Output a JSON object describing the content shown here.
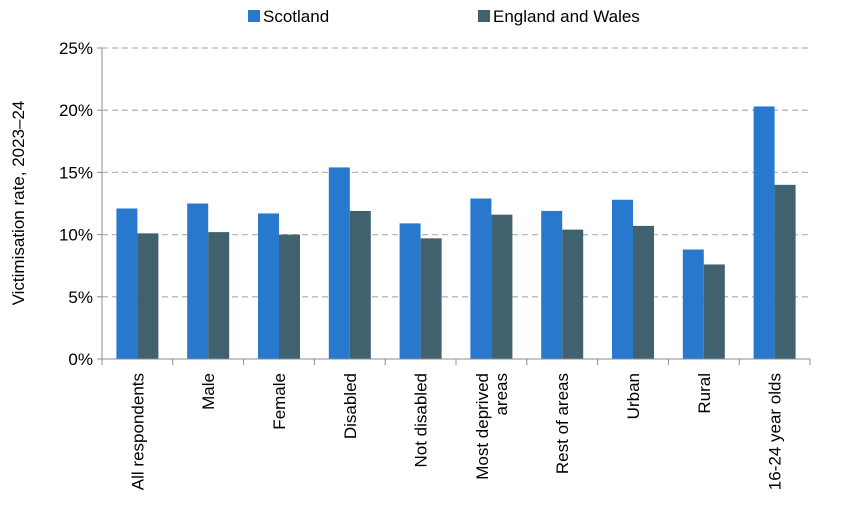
{
  "chart_data": {
    "type": "bar",
    "ylabel": "Victimisation rate, 2023–24",
    "yticks": [
      "0%",
      "5%",
      "10%",
      "15%",
      "20%",
      "25%"
    ],
    "ylim": [
      0,
      25
    ],
    "y_unit": "%",
    "grid": true,
    "legend_position": "top",
    "categories": [
      [
        "All respondents"
      ],
      [
        "Male"
      ],
      [
        "Female"
      ],
      [
        "Disabled"
      ],
      [
        "Not disabled"
      ],
      [
        "Most deprived",
        "areas"
      ],
      [
        "Rest of areas"
      ],
      [
        "Urban"
      ],
      [
        "Rural"
      ],
      [
        "16-24 year olds"
      ]
    ],
    "series": [
      {
        "name": "Scotland",
        "color": "#2878CE",
        "values": [
          12.1,
          12.5,
          11.7,
          15.4,
          10.9,
          12.9,
          11.9,
          12.8,
          8.8,
          20.3
        ]
      },
      {
        "name": "England and Wales",
        "color": "#3F626E",
        "values": [
          10.1,
          10.2,
          10.0,
          11.9,
          9.7,
          11.6,
          10.4,
          10.7,
          7.6,
          14.0
        ]
      }
    ]
  }
}
